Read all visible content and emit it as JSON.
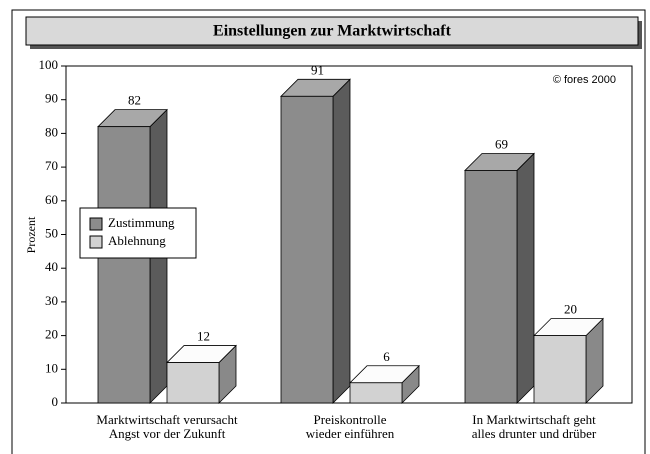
{
  "chart_data": {
    "type": "bar3d",
    "title": "Einstellungen zur Marktwirtschaft",
    "ylabel": "Prozent",
    "annotation": "© fores 2000",
    "categories": [
      [
        "Marktwirtschaft verursacht",
        "Angst vor der Zukunft"
      ],
      [
        "Preiskontrolle",
        "wieder einführen"
      ],
      [
        "In Marktwirtschaft geht",
        "alles drunter und drüber"
      ]
    ],
    "series": [
      {
        "name": "Zustimmung",
        "color": "#8c8c8c",
        "values": [
          82,
          91,
          69
        ]
      },
      {
        "name": "Ablehnung",
        "color": "#d2d2d2",
        "values": [
          12,
          6,
          20
        ]
      }
    ],
    "ylim": [
      0,
      100
    ],
    "yticks": [
      0,
      10,
      20,
      30,
      40,
      50,
      60,
      70,
      80,
      90,
      100
    ],
    "grid": false
  }
}
